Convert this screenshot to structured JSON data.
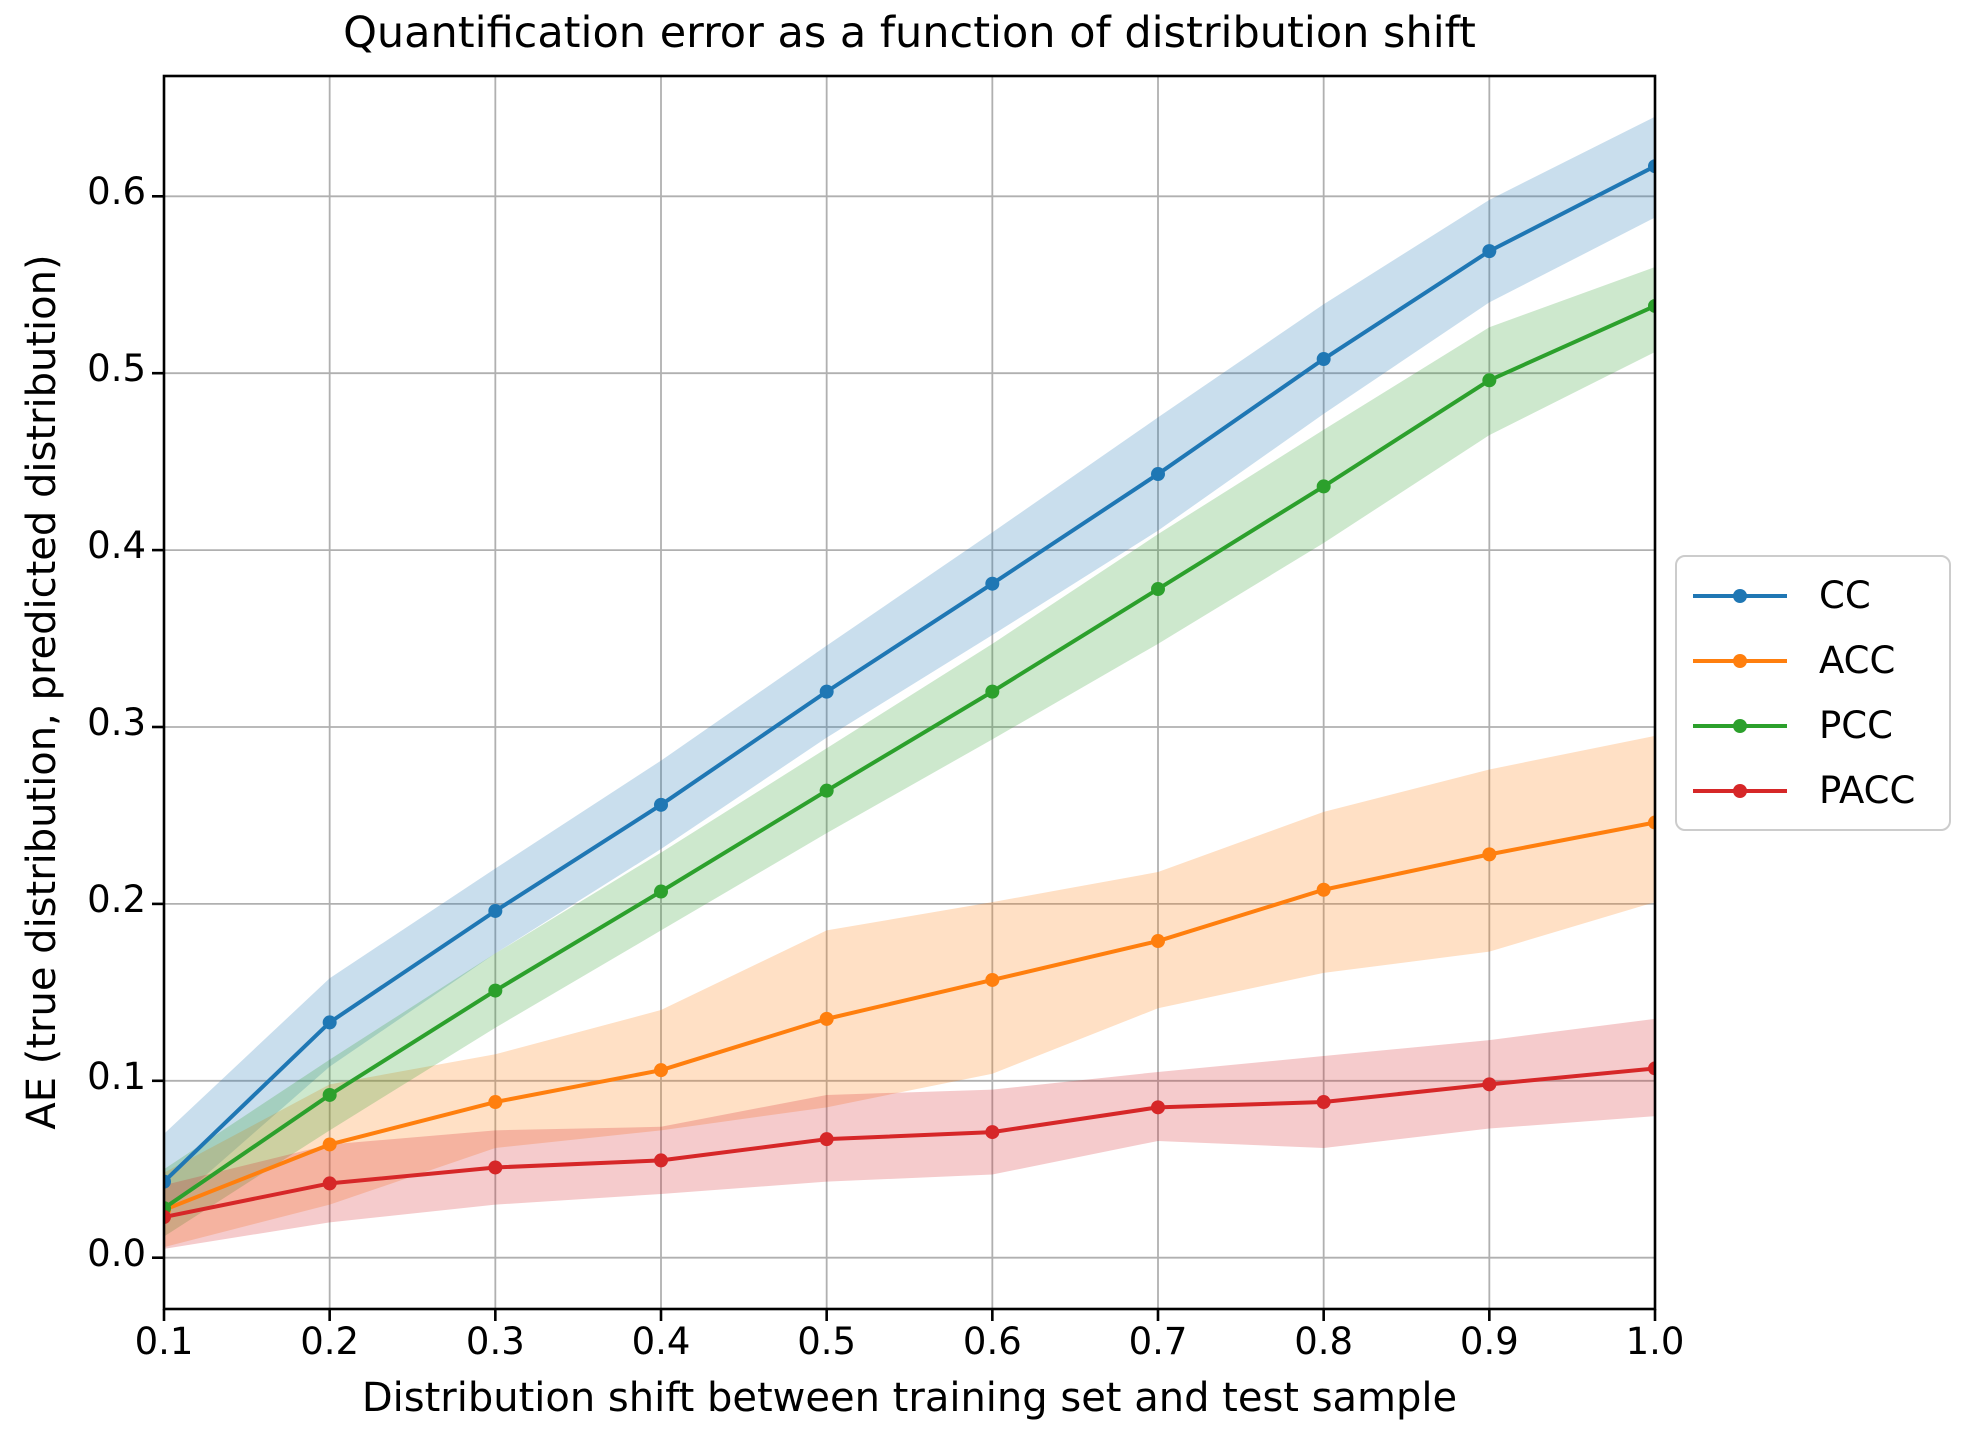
{
  "chart_data": {
    "type": "line",
    "title": "Quantification error as a function of distribution shift",
    "xlabel": "Distribution shift between training set and test sample",
    "ylabel": "AE (true distribution, predicted distribution)",
    "grid": true,
    "legend_position": "outside-center-right",
    "xlim": [
      0.1,
      1.0
    ],
    "ylim": [
      -0.029,
      0.668
    ],
    "x": [
      0.1,
      0.2,
      0.3,
      0.4,
      0.5,
      0.6,
      0.7,
      0.8,
      0.9,
      1.0
    ],
    "x_tick_labels": [
      "0.1",
      "0.2",
      "0.3",
      "0.4",
      "0.5",
      "0.6",
      "0.7",
      "0.8",
      "0.9",
      "1.0"
    ],
    "y_ticks": [
      0.0,
      0.1,
      0.2,
      0.3,
      0.4,
      0.5,
      0.6
    ],
    "y_tick_labels": [
      "0.0",
      "0.1",
      "0.2",
      "0.3",
      "0.4",
      "0.5",
      "0.6"
    ],
    "series": [
      {
        "name": "CC",
        "color": "#1f77b4",
        "values": [
          0.043,
          0.133,
          0.196,
          0.256,
          0.32,
          0.381,
          0.443,
          0.508,
          0.569,
          0.617
        ],
        "band_lower": [
          0.026,
          0.108,
          0.172,
          0.231,
          0.294,
          0.352,
          0.411,
          0.477,
          0.54,
          0.588
        ],
        "band_upper": [
          0.07,
          0.158,
          0.22,
          0.281,
          0.346,
          0.41,
          0.475,
          0.539,
          0.598,
          0.645
        ]
      },
      {
        "name": "ACC",
        "color": "#ff7f0e",
        "values": [
          0.027,
          0.064,
          0.088,
          0.106,
          0.135,
          0.157,
          0.179,
          0.208,
          0.228,
          0.246
        ],
        "band_lower": [
          0.006,
          0.03,
          0.062,
          0.072,
          0.085,
          0.104,
          0.141,
          0.161,
          0.173,
          0.201
        ],
        "band_upper": [
          0.048,
          0.098,
          0.115,
          0.14,
          0.185,
          0.201,
          0.218,
          0.252,
          0.276,
          0.295
        ]
      },
      {
        "name": "PCC",
        "color": "#2ca02c",
        "values": [
          0.028,
          0.092,
          0.151,
          0.207,
          0.264,
          0.32,
          0.378,
          0.436,
          0.496,
          0.538
        ],
        "band_lower": [
          0.012,
          0.072,
          0.13,
          0.185,
          0.24,
          0.293,
          0.347,
          0.404,
          0.465,
          0.512
        ],
        "band_upper": [
          0.05,
          0.112,
          0.172,
          0.229,
          0.288,
          0.347,
          0.409,
          0.468,
          0.526,
          0.56
        ]
      },
      {
        "name": "PACC",
        "color": "#d62728",
        "values": [
          0.023,
          0.042,
          0.051,
          0.055,
          0.067,
          0.071,
          0.085,
          0.088,
          0.098,
          0.107
        ],
        "band_lower": [
          0.005,
          0.02,
          0.03,
          0.036,
          0.043,
          0.047,
          0.066,
          0.062,
          0.073,
          0.08
        ],
        "band_upper": [
          0.041,
          0.064,
          0.072,
          0.074,
          0.092,
          0.095,
          0.105,
          0.114,
          0.123,
          0.135
        ]
      }
    ],
    "band_opacity": 0.24,
    "colors": {
      "grid": "#b0b0b0",
      "spine": "#000000",
      "background": "#ffffff"
    }
  }
}
